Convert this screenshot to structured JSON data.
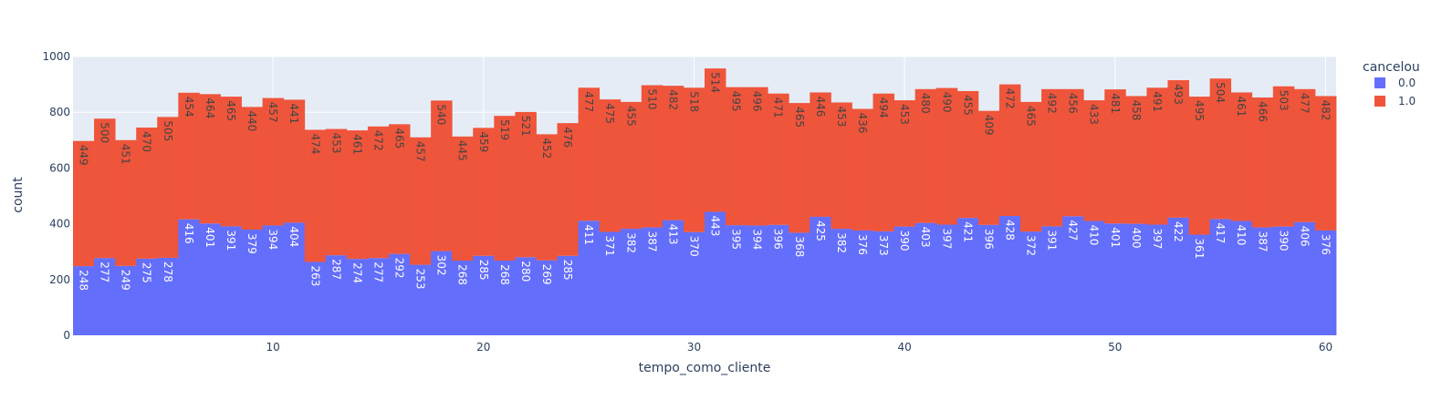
{
  "chart_data": {
    "type": "bar",
    "barmode": "stack",
    "title": "",
    "xlabel": "tempo_como_cliente",
    "ylabel": "count",
    "xlim": [
      0.5,
      60.5
    ],
    "ylim": [
      0,
      1000
    ],
    "xticks": [
      10,
      20,
      30,
      40,
      50,
      60
    ],
    "yticks": [
      0,
      200,
      400,
      600,
      800,
      1000
    ],
    "grid": true,
    "legend": {
      "title": "cancelou",
      "placement": "top-right"
    },
    "categories": [
      1,
      2,
      3,
      4,
      5,
      6,
      7,
      8,
      9,
      10,
      11,
      12,
      13,
      14,
      15,
      16,
      17,
      18,
      19,
      20,
      21,
      22,
      23,
      24,
      25,
      26,
      27,
      28,
      29,
      30,
      31,
      32,
      33,
      34,
      35,
      36,
      37,
      38,
      39,
      40,
      41,
      42,
      43,
      44,
      45,
      46,
      47,
      48,
      49,
      50,
      51,
      52,
      53,
      54,
      55,
      56,
      57,
      58,
      59,
      60
    ],
    "series": [
      {
        "name": "0.0",
        "color": "#636efa",
        "label_color": "#ffffff",
        "values": [
          248,
          277,
          249,
          275,
          278,
          416,
          401,
          391,
          379,
          394,
          404,
          263,
          287,
          274,
          277,
          292,
          253,
          302,
          268,
          285,
          268,
          280,
          269,
          285,
          411,
          371,
          382,
          387,
          413,
          370,
          443,
          395,
          394,
          396,
          368,
          425,
          382,
          376,
          373,
          390,
          403,
          397,
          421,
          396,
          428,
          372,
          391,
          427,
          410,
          401,
          400,
          397,
          422,
          361,
          417,
          410,
          387,
          390,
          406,
          376
        ]
      },
      {
        "name": "1.0",
        "color": "#ef553b",
        "label_color": "#444444",
        "values": [
          449,
          500,
          451,
          470,
          505,
          454,
          464,
          465,
          440,
          457,
          441,
          474,
          453,
          461,
          472,
          465,
          457,
          540,
          445,
          459,
          519,
          521,
          452,
          476,
          477,
          475,
          455,
          510,
          482,
          518,
          514,
          495,
          496,
          471,
          465,
          446,
          453,
          436,
          494,
          453,
          480,
          490,
          455,
          409,
          472,
          465,
          492,
          456,
          433,
          481,
          458,
          491,
          493,
          495,
          504,
          461,
          466,
          503,
          477,
          482
        ]
      }
    ]
  },
  "colors": {
    "plot_background": "#e5ecf6",
    "grid": "#ffffff",
    "text": "#2a3f5f"
  }
}
